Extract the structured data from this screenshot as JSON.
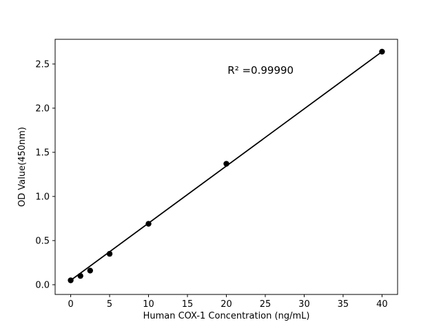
{
  "chart_data": {
    "type": "scatter",
    "title": "",
    "xlabel": "Human COX-1 Concentration (ng/mL)",
    "ylabel": "OD Value(450nm)",
    "annotation": "R² =0.99990",
    "annotation_axes_fraction": [
      0.6,
      0.878
    ],
    "x": [
      0,
      1.25,
      2.5,
      5,
      10,
      20,
      40
    ],
    "y": [
      0.05,
      0.1,
      0.16,
      0.35,
      0.69,
      1.37,
      2.64
    ],
    "fit_line": {
      "x": [
        0,
        40
      ],
      "y": [
        0.05,
        2.64
      ]
    },
    "xlim": [
      -2,
      42
    ],
    "ylim": [
      -0.11,
      2.78
    ],
    "xtick_values": [
      0,
      5,
      10,
      15,
      20,
      25,
      30,
      35,
      40
    ],
    "xtick_labels": [
      "0",
      "5",
      "10",
      "15",
      "20",
      "25",
      "30",
      "35",
      "40"
    ],
    "ytick_values": [
      0,
      0.5,
      1.0,
      1.5,
      2.0,
      2.5
    ],
    "ytick_labels": [
      "0.0",
      "0.5",
      "1.0",
      "1.5",
      "2.0",
      "2.5"
    ],
    "grid": false,
    "legend": null,
    "marker_color": "#000000",
    "line_color": "#000000",
    "frame_color": "#000000",
    "background": "#ffffff"
  }
}
